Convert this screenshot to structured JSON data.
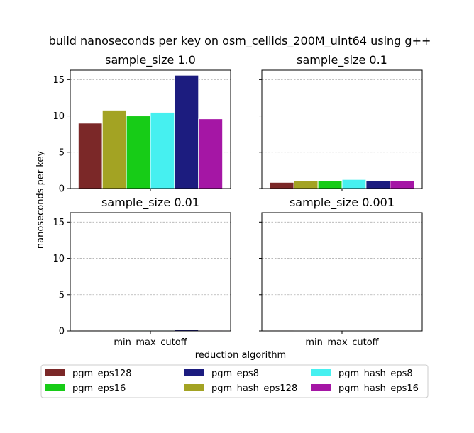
{
  "chart_data": {
    "type": "bar",
    "title": "build nanoseconds per key on osm_cellids_200M_uint64 using g++",
    "xlabel": "reduction algorithm",
    "ylabel": "nanoseconds per key",
    "ylim": [
      0,
      16.3
    ],
    "yticks": [
      0,
      5,
      10,
      15
    ],
    "grid": "y-dashed",
    "category": "min_max_cutoff",
    "legend_position": "bottom-center",
    "series_names": [
      "pgm_eps128",
      "pgm_hash_eps128",
      "pgm_eps16",
      "pgm_hash_eps8",
      "pgm_eps8",
      "pgm_hash_eps16"
    ],
    "colors": [
      "#7b2828",
      "#a3a323",
      "#17cc17",
      "#46f0f0",
      "#1c1c7f",
      "#a516a5"
    ],
    "legend_order": [
      0,
      2,
      4,
      1,
      3,
      5
    ],
    "panels": [
      {
        "title": "sample_size 1.0",
        "values": [
          9.0,
          10.8,
          10.0,
          10.5,
          15.6,
          9.6
        ],
        "show_xtick": false
      },
      {
        "title": "sample_size 0.1",
        "values": [
          0.85,
          1.05,
          1.05,
          1.25,
          1.05,
          1.05
        ],
        "show_xtick": false
      },
      {
        "title": "sample_size 0.01",
        "values": [
          0.1,
          0.1,
          0.1,
          0.1,
          0.2,
          0.1
        ],
        "show_xtick": true
      },
      {
        "title": "sample_size 0.001",
        "values": [
          0.1,
          null,
          null,
          null,
          null,
          null
        ],
        "show_xtick": true
      }
    ]
  }
}
